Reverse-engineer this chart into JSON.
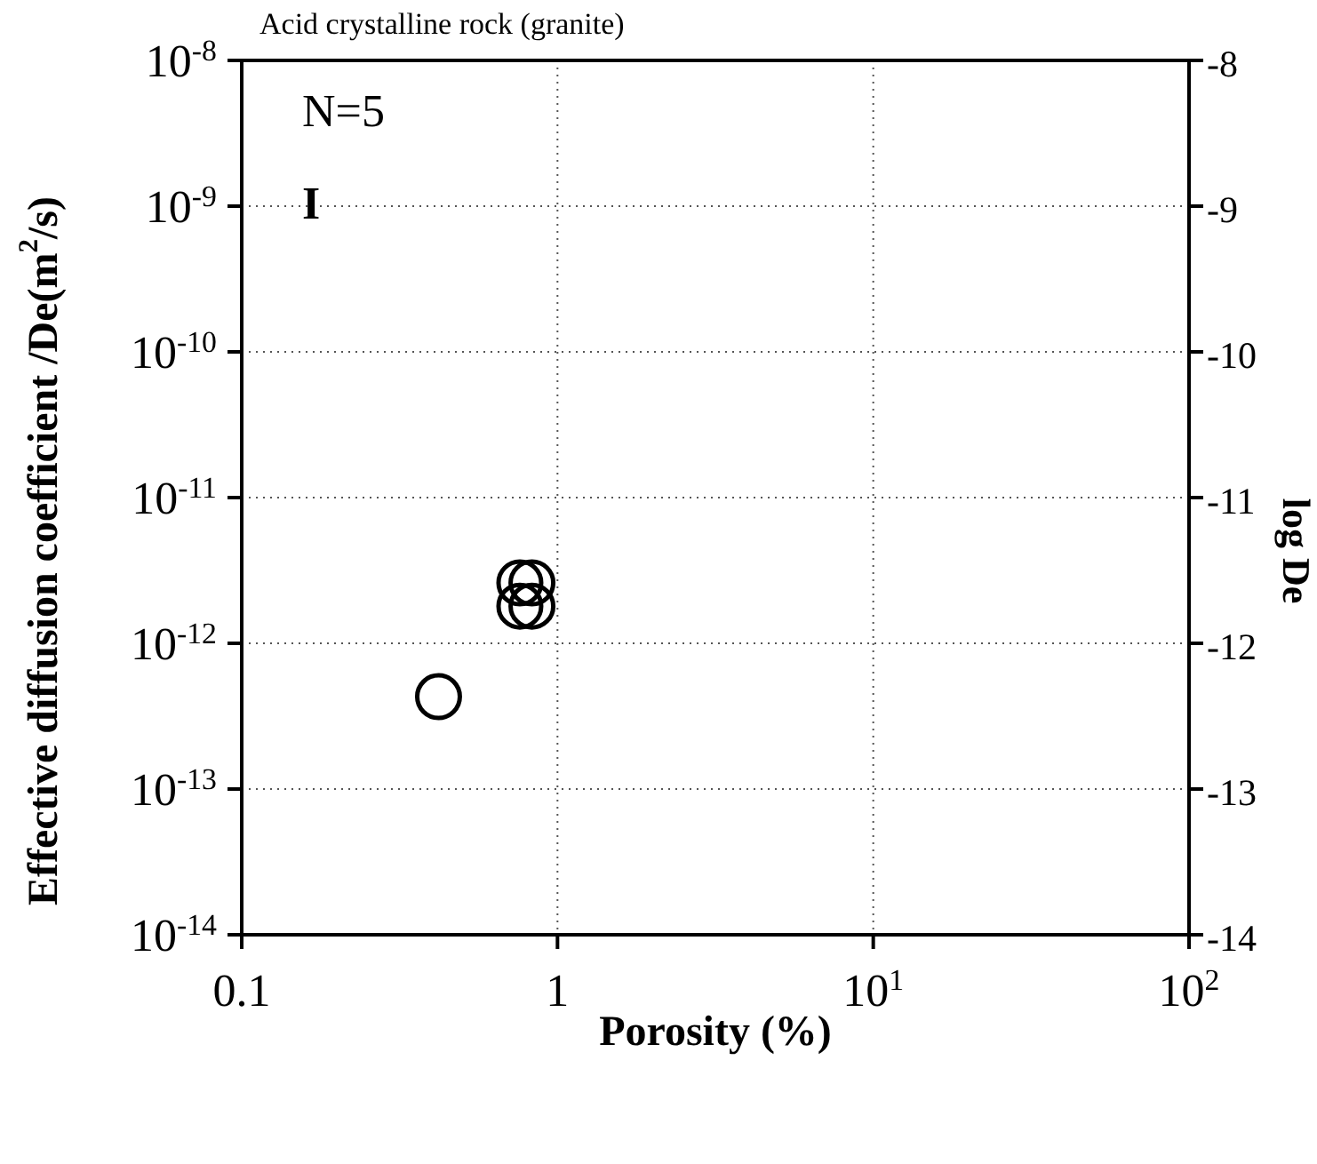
{
  "chart_data": {
    "type": "scatter",
    "title": "Acid crystalline rock (granite)",
    "xlabel": "Porosity (%)",
    "ylabel": "Effective diffusion coefficient /De(m$^{2}$/s)",
    "y2label": "log De",
    "annotations": [
      "N=5",
      "I"
    ],
    "log": "xy",
    "xlim": [
      0.1,
      100
    ],
    "xticks": [
      0.1,
      1,
      {
        "value": 10,
        "label": "10$^{1}$"
      },
      {
        "value": 100,
        "label": "10$^{2}$"
      }
    ],
    "ylim": [
      1e-14,
      1e-08
    ],
    "yticks": [
      {
        "value": 1e-14,
        "label": "10$^{-14}$"
      },
      {
        "value": 1e-13,
        "label": "10$^{-13}$"
      },
      {
        "value": 1e-12,
        "label": "10$^{-12}$"
      },
      {
        "value": 1e-11,
        "label": "10$^{-11}$"
      },
      {
        "value": 1e-10,
        "label": "10$^{-10}$"
      },
      {
        "value": 1e-09,
        "label": "10$^{-9}$"
      },
      {
        "value": 1e-08,
        "label": "10$^{-8}$"
      }
    ],
    "y2lim": [
      -14,
      -8
    ],
    "y2ticks": [
      -14,
      -13,
      -12,
      -11,
      -10,
      -9,
      -8
    ],
    "grid": true,
    "marker": "circle",
    "legend": false,
    "series": [
      {
        "color": "#000000",
        "x": [
          0.42,
          0.76,
          0.83,
          0.76,
          0.83
        ],
        "values": [
          4.3e-13,
          2.6e-12,
          2.6e-12,
          1.8e-12,
          1.8e-12
        ]
      }
    ]
  }
}
